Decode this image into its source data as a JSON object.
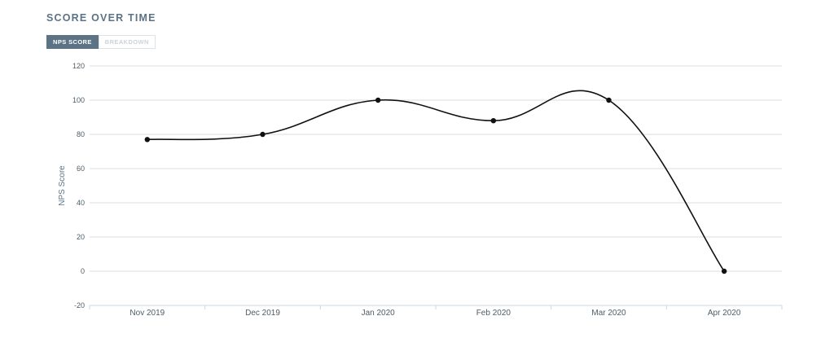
{
  "header": {
    "title": "SCORE OVER TIME"
  },
  "tabs": [
    {
      "label": "NPS SCORE",
      "active": true
    },
    {
      "label": "BREAKDOWN",
      "active": false
    }
  ],
  "colors": {
    "accent": "#5b7385",
    "line": "#111111",
    "grid": "#d9dee2"
  },
  "chart_data": {
    "type": "line",
    "categories": [
      "Nov 2019",
      "Dec 2019",
      "Jan 2020",
      "Feb 2020",
      "Mar 2020",
      "Apr 2020"
    ],
    "series": [
      {
        "values": [
          77,
          80,
          100,
          88,
          100,
          0
        ]
      }
    ],
    "ylabel": "NPS Score",
    "xlabel": "",
    "ylim": [
      -20,
      120
    ],
    "yticks": [
      -20,
      0,
      20,
      40,
      60,
      80,
      100,
      120
    ],
    "grid": true,
    "smooth": true
  }
}
